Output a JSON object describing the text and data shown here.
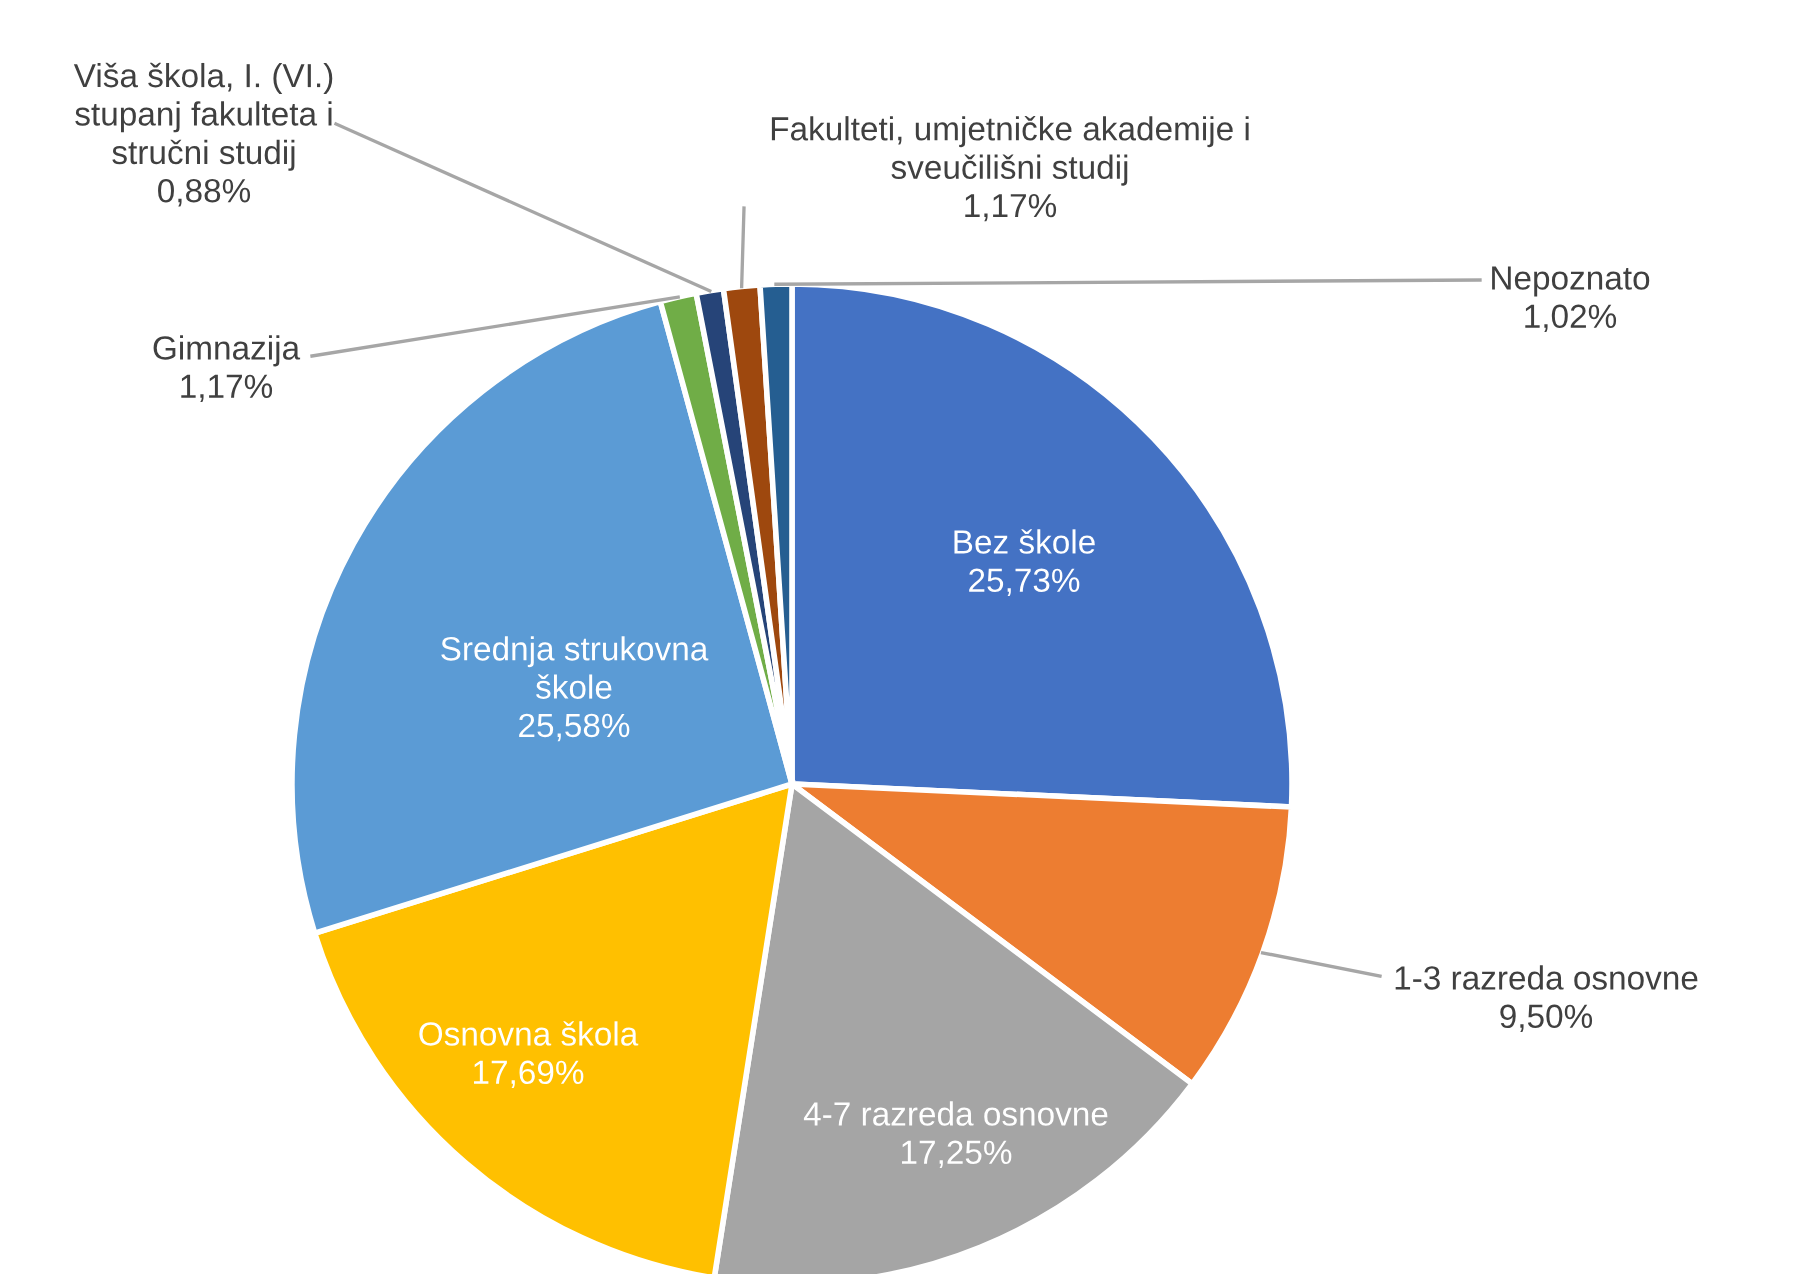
{
  "chart_data": {
    "type": "pie",
    "categories": [
      "Bez škole",
      "1-3 razreda osnovne",
      "4-7 razreda osnovne",
      "Osnovna škola",
      "Srednja strukovna\nškole",
      "Gimnazija",
      "Viša škola, I. (VI.)\nstupanj fakulteta i\nstručni studij",
      "Fakulteti, umjetničke akademije i\nsveučilišni studij",
      "Nepoznato"
    ],
    "values": [
      25.73,
      9.5,
      17.25,
      17.69,
      25.58,
      1.17,
      0.88,
      1.17,
      1.02
    ],
    "value_labels": [
      "25,73%",
      "9,50%",
      "17,25%",
      "17,69%",
      "25,58%",
      "1,17%",
      "0,88%",
      "1,17%",
      "1,02%"
    ],
    "colors": [
      "#4472c4",
      "#ed7d31",
      "#a5a5a5",
      "#ffc000",
      "#5b9bd5",
      "#70ad47",
      "#264478",
      "#9e480e",
      "#255e91"
    ],
    "legend": false
  }
}
